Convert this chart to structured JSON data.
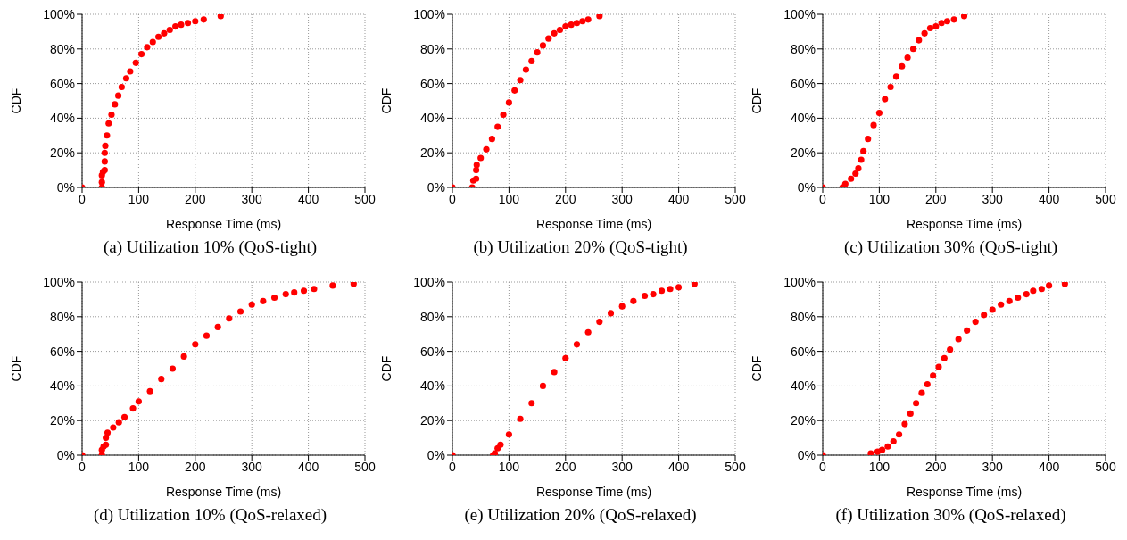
{
  "chart_data": [
    {
      "type": "scatter",
      "title": "(a) Utilization 10% (QoS-tight)",
      "xlabel": "Response Time (ms)",
      "ylabel": "CDF",
      "xlim": [
        0,
        500
      ],
      "xticks": [
        0,
        100,
        200,
        300,
        400,
        500
      ],
      "ylim": [
        0,
        100
      ],
      "yticks": [
        {
          "value": 0,
          "label": "0%"
        },
        {
          "value": 20,
          "label": "20%"
        },
        {
          "value": 40,
          "label": "40%"
        },
        {
          "value": 60,
          "label": "60%"
        },
        {
          "value": 80,
          "label": "80%"
        },
        {
          "value": 100,
          "label": "100%"
        }
      ],
      "grid": true,
      "marker": "circle",
      "legend": false,
      "series": [
        {
          "color": "#ff0000",
          "x": [
            0,
            35,
            35,
            35,
            37,
            40,
            40,
            40,
            41,
            44,
            47,
            52,
            58,
            64,
            70,
            78,
            85,
            95,
            105,
            115,
            125,
            135,
            145,
            155,
            165,
            175,
            187,
            200,
            215,
            245
          ],
          "values": [
            0,
            0,
            3,
            7,
            9,
            10,
            15,
            20,
            24,
            30,
            37,
            42,
            48,
            53,
            58,
            63,
            67,
            72,
            77,
            81,
            84,
            87,
            89,
            91,
            93,
            94,
            95,
            96,
            97,
            99
          ]
        }
      ]
    },
    {
      "type": "scatter",
      "title": "(b) Utilization 20% (QoS-tight)",
      "xlabel": "Response Time (ms)",
      "ylabel": "CDF",
      "xlim": [
        0,
        500
      ],
      "xticks": [
        0,
        100,
        200,
        300,
        400,
        500
      ],
      "ylim": [
        0,
        100
      ],
      "yticks": [
        {
          "value": 0,
          "label": "0%"
        },
        {
          "value": 20,
          "label": "20%"
        },
        {
          "value": 40,
          "label": "40%"
        },
        {
          "value": 60,
          "label": "60%"
        },
        {
          "value": 80,
          "label": "80%"
        },
        {
          "value": 100,
          "label": "100%"
        }
      ],
      "grid": true,
      "marker": "circle",
      "legend": false,
      "series": [
        {
          "color": "#ff0000",
          "x": [
            0,
            35,
            37,
            42,
            42,
            43,
            50,
            60,
            70,
            80,
            90,
            100,
            110,
            120,
            130,
            140,
            150,
            160,
            170,
            180,
            190,
            200,
            210,
            220,
            230,
            240,
            260
          ],
          "values": [
            0,
            0,
            4,
            5,
            10,
            13,
            17,
            22,
            28,
            35,
            42,
            49,
            56,
            62,
            68,
            73,
            78,
            82,
            86,
            89,
            91,
            93,
            94,
            95,
            96,
            97,
            99
          ]
        }
      ]
    },
    {
      "type": "scatter",
      "title": "(c) Utilization 30% (QoS-tight)",
      "xlabel": "Response Time (ms)",
      "ylabel": "CDF",
      "xlim": [
        0,
        500
      ],
      "xticks": [
        0,
        100,
        200,
        300,
        400,
        500
      ],
      "ylim": [
        0,
        100
      ],
      "yticks": [
        {
          "value": 0,
          "label": "0%"
        },
        {
          "value": 20,
          "label": "20%"
        },
        {
          "value": 40,
          "label": "40%"
        },
        {
          "value": 60,
          "label": "60%"
        },
        {
          "value": 80,
          "label": "80%"
        },
        {
          "value": 100,
          "label": "100%"
        }
      ],
      "grid": true,
      "marker": "circle",
      "legend": false,
      "series": [
        {
          "color": "#ff0000",
          "x": [
            0,
            35,
            40,
            50,
            58,
            63,
            68,
            72,
            80,
            90,
            100,
            110,
            120,
            130,
            140,
            150,
            160,
            170,
            180,
            190,
            200,
            210,
            220,
            232,
            250
          ],
          "values": [
            0,
            0,
            2,
            5,
            8,
            11,
            16,
            21,
            28,
            36,
            43,
            51,
            58,
            64,
            70,
            75,
            80,
            85,
            89,
            92,
            93,
            95,
            96,
            97,
            99
          ]
        }
      ]
    },
    {
      "type": "scatter",
      "title": "(d) Utilization 10% (QoS-relaxed)",
      "xlabel": "Response Time (ms)",
      "ylabel": "CDF",
      "xlim": [
        0,
        500
      ],
      "xticks": [
        0,
        100,
        200,
        300,
        400,
        500
      ],
      "ylim": [
        0,
        100
      ],
      "yticks": [
        {
          "value": 0,
          "label": "0%"
        },
        {
          "value": 20,
          "label": "20%"
        },
        {
          "value": 40,
          "label": "40%"
        },
        {
          "value": 60,
          "label": "60%"
        },
        {
          "value": 80,
          "label": "80%"
        },
        {
          "value": 100,
          "label": "100%"
        }
      ],
      "grid": true,
      "marker": "circle",
      "legend": false,
      "series": [
        {
          "color": "#ff0000",
          "x": [
            0,
            35,
            35,
            38,
            42,
            42,
            45,
            55,
            65,
            75,
            90,
            100,
            120,
            140,
            160,
            180,
            200,
            220,
            240,
            260,
            280,
            300,
            320,
            340,
            360,
            375,
            392,
            410,
            443,
            480
          ],
          "values": [
            0,
            0,
            3,
            5,
            6,
            10,
            13,
            16,
            19,
            22,
            27,
            31,
            37,
            44,
            50,
            57,
            64,
            69,
            74,
            79,
            83,
            87,
            89,
            91,
            93,
            94,
            95,
            96,
            98,
            99
          ]
        }
      ]
    },
    {
      "type": "scatter",
      "title": "(e) Utilization 20% (QoS-relaxed)",
      "xlabel": "Response Time (ms)",
      "ylabel": "CDF",
      "xlim": [
        0,
        500
      ],
      "xticks": [
        0,
        100,
        200,
        300,
        400,
        500
      ],
      "ylim": [
        0,
        100
      ],
      "yticks": [
        {
          "value": 0,
          "label": "0%"
        },
        {
          "value": 20,
          "label": "20%"
        },
        {
          "value": 40,
          "label": "40%"
        },
        {
          "value": 60,
          "label": "60%"
        },
        {
          "value": 80,
          "label": "80%"
        },
        {
          "value": 100,
          "label": "100%"
        }
      ],
      "grid": true,
      "marker": "circle",
      "legend": false,
      "series": [
        {
          "color": "#ff0000",
          "x": [
            0,
            72,
            75,
            80,
            85,
            100,
            120,
            140,
            160,
            180,
            200,
            220,
            240,
            260,
            280,
            300,
            320,
            340,
            355,
            370,
            385,
            400,
            428
          ],
          "values": [
            0,
            0,
            1,
            4,
            6,
            12,
            21,
            30,
            40,
            48,
            56,
            64,
            71,
            77,
            82,
            86,
            89,
            92,
            93,
            95,
            96,
            97,
            99
          ]
        }
      ]
    },
    {
      "type": "scatter",
      "title": "(f) Utilization 30% (QoS-relaxed)",
      "xlabel": "Response Time (ms)",
      "ylabel": "CDF",
      "xlim": [
        0,
        500
      ],
      "xticks": [
        0,
        100,
        200,
        300,
        400,
        500
      ],
      "ylim": [
        0,
        100
      ],
      "yticks": [
        {
          "value": 0,
          "label": "0%"
        },
        {
          "value": 20,
          "label": "20%"
        },
        {
          "value": 40,
          "label": "40%"
        },
        {
          "value": 60,
          "label": "60%"
        },
        {
          "value": 80,
          "label": "80%"
        },
        {
          "value": 100,
          "label": "100%"
        }
      ],
      "grid": true,
      "marker": "circle",
      "legend": false,
      "series": [
        {
          "color": "#ff0000",
          "x": [
            0,
            85,
            97,
            105,
            115,
            125,
            135,
            145,
            155,
            165,
            175,
            185,
            195,
            205,
            215,
            225,
            240,
            255,
            270,
            285,
            300,
            315,
            330,
            345,
            360,
            372,
            387,
            400,
            428
          ],
          "values": [
            0,
            1,
            2,
            3,
            5,
            8,
            12,
            18,
            24,
            30,
            36,
            41,
            46,
            51,
            56,
            61,
            67,
            72,
            77,
            81,
            84,
            87,
            89,
            91,
            93,
            95,
            96,
            98,
            99
          ]
        }
      ]
    }
  ]
}
